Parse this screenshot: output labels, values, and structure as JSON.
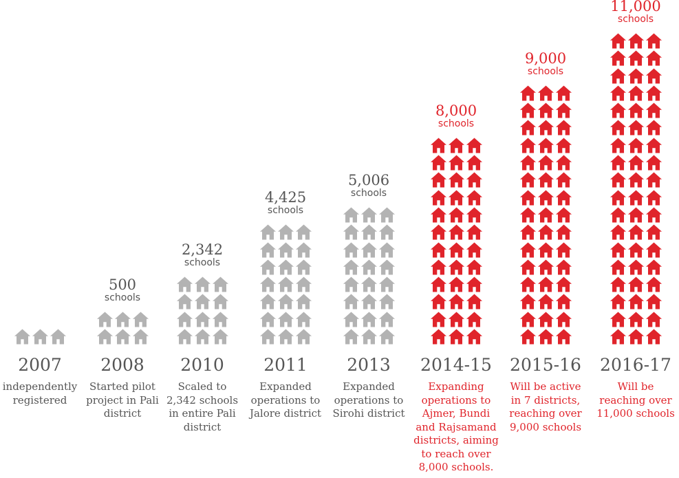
{
  "chart_data": {
    "type": "bar",
    "encoding": "pictograph",
    "categories": [
      "2007",
      "2008",
      "2010",
      "2011",
      "2013",
      "2014-15",
      "2015-16",
      "2016-17"
    ],
    "values": [
      null,
      500,
      2342,
      4425,
      5006,
      8000,
      9000,
      11000
    ],
    "icons_per_column": [
      3,
      6,
      12,
      21,
      24,
      36,
      45,
      54
    ],
    "value_labels": [
      "",
      "500",
      "2,342",
      "4,425",
      "5,006",
      "8,000",
      "9,000",
      "11,000"
    ],
    "unit_label": "schools",
    "descriptions": [
      "independently\nregistered",
      "Started pilot\nproject in Pali\ndistrict",
      "Scaled to\n2,342 schools\nin entire Pali\ndistrict",
      "Expanded\noperations to\nJalore district",
      "Expanded\noperations to\nSirohi district",
      "Expanding\noperations to\nAjmer, Bundi\nand Rajsamand\ndistricts, aiming\nto reach over\n8,000 schools.",
      "Will be active\nin 7 districts,\nreaching over\n9,000 schools",
      "Will be\nreaching over\n11,000 schools"
    ],
    "highlight_from_index": 5,
    "icon": "house-icon",
    "colors": {
      "past": "#b3b3b3",
      "future": "#e0242b",
      "past_text": "#555555",
      "future_text": "#e0242b",
      "year_text": "#555555"
    }
  }
}
